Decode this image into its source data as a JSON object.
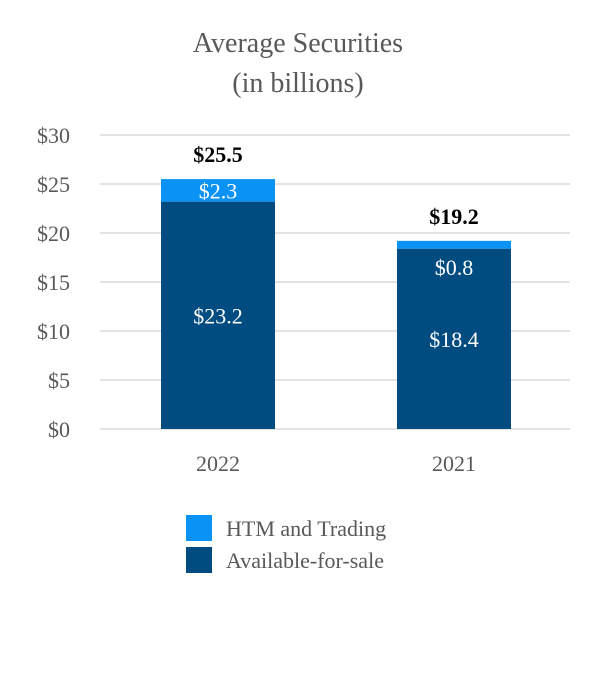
{
  "chart_data": {
    "type": "bar",
    "stacked": true,
    "title": "Average Securities",
    "subtitle": "(in billions)",
    "categories": [
      "2022",
      "2021"
    ],
    "series": [
      {
        "name": "Available-for-sale",
        "values": [
          23.2,
          18.4
        ],
        "labels": [
          "$23.2",
          "$18.4"
        ],
        "color": "#004B7F"
      },
      {
        "name": "HTM and Trading",
        "values": [
          2.3,
          0.8
        ],
        "labels": [
          "$2.3",
          "$0.8"
        ],
        "color": "#0A93F4"
      }
    ],
    "totals": [
      25.5,
      19.2
    ],
    "total_labels": [
      "$25.5",
      "$19.2"
    ],
    "ylim": [
      0,
      30
    ],
    "yticks": [
      0,
      5,
      10,
      15,
      20,
      25,
      30
    ],
    "ytick_labels": [
      "$0",
      "$5",
      "$10",
      "$15",
      "$20",
      "$25",
      "$30"
    ],
    "grid": true,
    "legend_position": "bottom",
    "legend": [
      "HTM and Trading",
      "Available-for-sale"
    ]
  }
}
